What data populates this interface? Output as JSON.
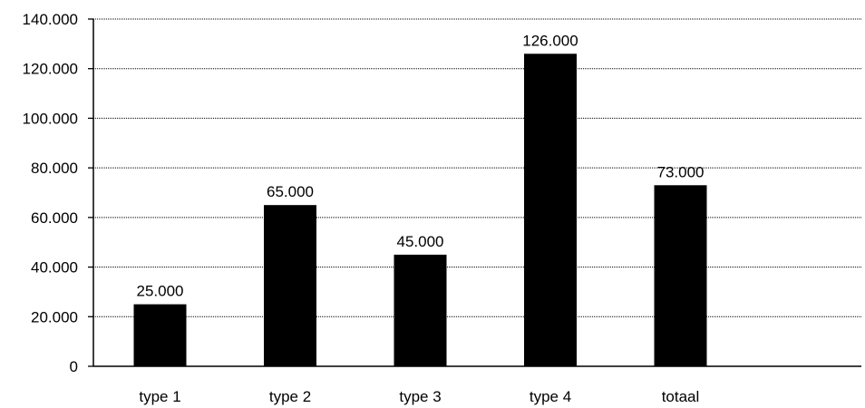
{
  "chart_data": {
    "type": "bar",
    "categories": [
      "type 1",
      "type 2",
      "type 3",
      "type 4",
      "totaal"
    ],
    "values": [
      25000,
      65000,
      45000,
      126000,
      73000
    ],
    "value_labels": [
      "25.000",
      "65.000",
      "45.000",
      "126.000",
      "73.000"
    ],
    "y_ticks": [
      0,
      20000,
      40000,
      60000,
      80000,
      100000,
      120000,
      140000
    ],
    "y_tick_labels": [
      "0",
      "20.000",
      "40.000",
      "60.000",
      "80.000",
      "100.000",
      "120.000",
      "140.000"
    ],
    "ylim": [
      0,
      140000
    ],
    "grid": true,
    "grid_style": "dotted horizontal",
    "title": "",
    "xlabel": "",
    "ylabel": "",
    "colors": {
      "bar": "#000000",
      "axis": "#000000",
      "grid": "#000000"
    }
  }
}
